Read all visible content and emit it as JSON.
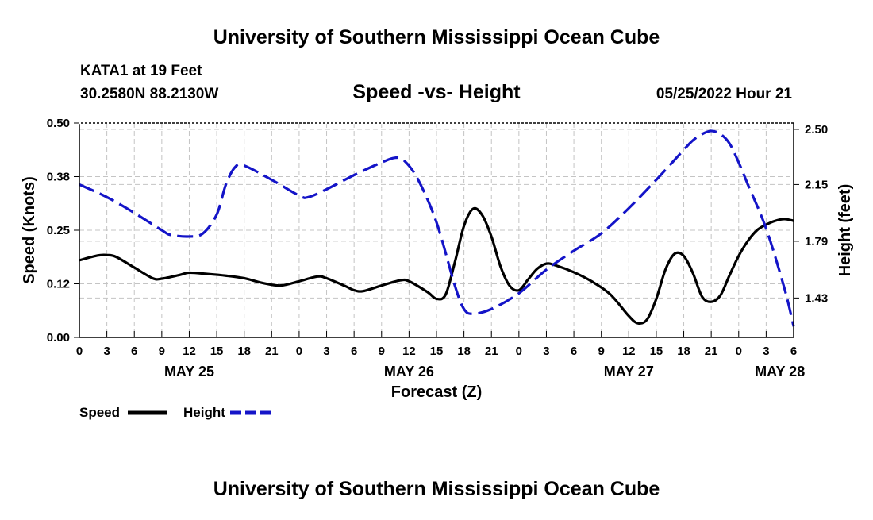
{
  "header": {
    "title": "University of Southern Mississippi Ocean Cube",
    "station": "KATA1 at 19 Feet",
    "coords": "30.2580N  88.2130W",
    "datetime": "05/25/2022 Hour 21",
    "footer_title": "University of Southern Mississippi Ocean Cube"
  },
  "chart_data": {
    "type": "line",
    "title": "Speed -vs- Height",
    "xlabel": "Forecast (Z)",
    "ylabel_left": "Speed (Knots)",
    "ylabel_right": "Height (feet)",
    "xlim": [
      0,
      78
    ],
    "ylim_left": [
      0,
      0.5
    ],
    "ylim_right": [
      1.18,
      2.54
    ],
    "left_ticks": [
      {
        "value": 0.0,
        "label": "0.00"
      },
      {
        "value": 0.125,
        "label": "0.12"
      },
      {
        "value": 0.25,
        "label": "0.25"
      },
      {
        "value": 0.375,
        "label": "0.38"
      },
      {
        "value": 0.5,
        "label": "0.50"
      }
    ],
    "right_ticks": [
      {
        "value": 1.43,
        "label": "1.43"
      },
      {
        "value": 1.79,
        "label": "1.79"
      },
      {
        "value": 2.15,
        "label": "2.15"
      },
      {
        "value": 2.5,
        "label": "2.50"
      }
    ],
    "x_ticks": [
      {
        "x": 0,
        "label": "0"
      },
      {
        "x": 3,
        "label": "3"
      },
      {
        "x": 6,
        "label": "6"
      },
      {
        "x": 9,
        "label": "9"
      },
      {
        "x": 12,
        "label": "12"
      },
      {
        "x": 15,
        "label": "15"
      },
      {
        "x": 18,
        "label": "18"
      },
      {
        "x": 21,
        "label": "21"
      },
      {
        "x": 24,
        "label": "0"
      },
      {
        "x": 27,
        "label": "3"
      },
      {
        "x": 30,
        "label": "6"
      },
      {
        "x": 33,
        "label": "9"
      },
      {
        "x": 36,
        "label": "12"
      },
      {
        "x": 39,
        "label": "15"
      },
      {
        "x": 42,
        "label": "18"
      },
      {
        "x": 45,
        "label": "21"
      },
      {
        "x": 48,
        "label": "0"
      },
      {
        "x": 51,
        "label": "3"
      },
      {
        "x": 54,
        "label": "6"
      },
      {
        "x": 57,
        "label": "9"
      },
      {
        "x": 60,
        "label": "12"
      },
      {
        "x": 63,
        "label": "15"
      },
      {
        "x": 66,
        "label": "18"
      },
      {
        "x": 69,
        "label": "21"
      },
      {
        "x": 72,
        "label": "0"
      },
      {
        "x": 75,
        "label": "3"
      },
      {
        "x": 78,
        "label": "6"
      }
    ],
    "day_labels": [
      {
        "x": 12,
        "label": "MAY 25"
      },
      {
        "x": 36,
        "label": "MAY 26"
      },
      {
        "x": 60,
        "label": "MAY 27"
      },
      {
        "x": 76.5,
        "label": "MAY 28"
      }
    ],
    "series": [
      {
        "name": "Speed",
        "axis": "left",
        "color": "#000000",
        "dash": "solid",
        "points": [
          [
            0,
            0.18
          ],
          [
            2,
            0.191
          ],
          [
            3,
            0.192
          ],
          [
            4,
            0.188
          ],
          [
            6,
            0.163
          ],
          [
            8,
            0.138
          ],
          [
            9,
            0.137
          ],
          [
            11,
            0.146
          ],
          [
            12,
            0.151
          ],
          [
            14,
            0.148
          ],
          [
            16,
            0.144
          ],
          [
            18,
            0.138
          ],
          [
            20,
            0.127
          ],
          [
            22,
            0.121
          ],
          [
            24,
            0.131
          ],
          [
            26,
            0.142
          ],
          [
            27,
            0.138
          ],
          [
            29,
            0.12
          ],
          [
            30,
            0.11
          ],
          [
            31,
            0.108
          ],
          [
            33,
            0.121
          ],
          [
            35,
            0.133
          ],
          [
            36,
            0.131
          ],
          [
            38,
            0.106
          ],
          [
            39,
            0.09
          ],
          [
            40,
            0.1
          ],
          [
            41,
            0.175
          ],
          [
            42,
            0.26
          ],
          [
            43,
            0.3
          ],
          [
            44,
            0.285
          ],
          [
            45,
            0.235
          ],
          [
            46,
            0.165
          ],
          [
            47,
            0.12
          ],
          [
            48,
            0.11
          ],
          [
            49,
            0.135
          ],
          [
            50,
            0.16
          ],
          [
            51,
            0.172
          ],
          [
            52,
            0.168
          ],
          [
            54,
            0.152
          ],
          [
            56,
            0.13
          ],
          [
            58,
            0.1
          ],
          [
            60,
            0.05
          ],
          [
            61,
            0.033
          ],
          [
            62,
            0.042
          ],
          [
            63,
            0.09
          ],
          [
            64,
            0.158
          ],
          [
            65,
            0.195
          ],
          [
            66,
            0.19
          ],
          [
            67,
            0.15
          ],
          [
            68,
            0.095
          ],
          [
            69,
            0.083
          ],
          [
            70,
            0.098
          ],
          [
            71,
            0.145
          ],
          [
            72,
            0.19
          ],
          [
            73,
            0.225
          ],
          [
            74,
            0.25
          ],
          [
            75,
            0.263
          ],
          [
            76,
            0.272
          ],
          [
            77,
            0.276
          ],
          [
            78,
            0.272
          ]
        ]
      },
      {
        "name": "Height",
        "axis": "right",
        "color": "#1414c8",
        "dash": "dashed",
        "points": [
          [
            0,
            2.15
          ],
          [
            3,
            2.07
          ],
          [
            6,
            1.97
          ],
          [
            9,
            1.86
          ],
          [
            10,
            1.83
          ],
          [
            12,
            1.82
          ],
          [
            13.5,
            1.84
          ],
          [
            15,
            1.96
          ],
          [
            16,
            2.15
          ],
          [
            17,
            2.26
          ],
          [
            18,
            2.27
          ],
          [
            21,
            2.18
          ],
          [
            24,
            2.08
          ],
          [
            25,
            2.07
          ],
          [
            27,
            2.12
          ],
          [
            30,
            2.21
          ],
          [
            33,
            2.29
          ],
          [
            34.5,
            2.32
          ],
          [
            35.5,
            2.3
          ],
          [
            37,
            2.18
          ],
          [
            39,
            1.91
          ],
          [
            41,
            1.51
          ],
          [
            42,
            1.36
          ],
          [
            43,
            1.33
          ],
          [
            45,
            1.36
          ],
          [
            48,
            1.46
          ],
          [
            51,
            1.61
          ],
          [
            54,
            1.73
          ],
          [
            57,
            1.84
          ],
          [
            60,
            2.0
          ],
          [
            63,
            2.18
          ],
          [
            66,
            2.37
          ],
          [
            67,
            2.43
          ],
          [
            68,
            2.47
          ],
          [
            69,
            2.49
          ],
          [
            70,
            2.47
          ],
          [
            71,
            2.41
          ],
          [
            72,
            2.29
          ],
          [
            73,
            2.15
          ],
          [
            75,
            1.87
          ],
          [
            77,
            1.49
          ],
          [
            78,
            1.25
          ]
        ]
      }
    ],
    "legend": [
      {
        "name": "Speed",
        "color": "#000000",
        "dash": "solid"
      },
      {
        "name": "Height",
        "color": "#1414c8",
        "dash": "dashed"
      }
    ]
  }
}
